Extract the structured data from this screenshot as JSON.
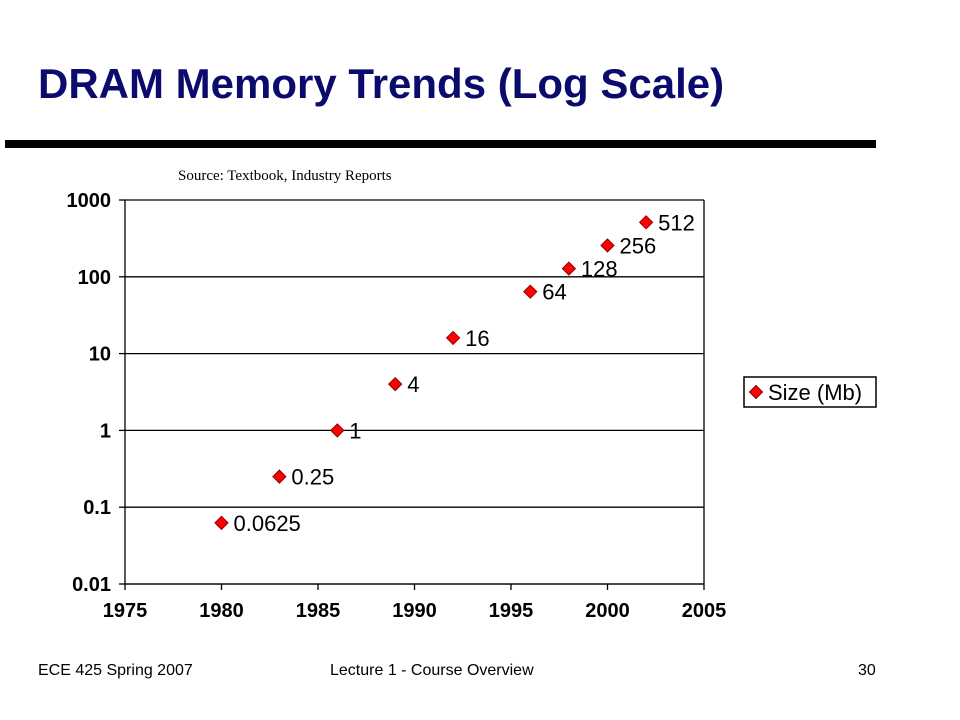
{
  "slide": {
    "title": "DRAM Memory Trends (Log Scale)",
    "source_note": "Source: Textbook, Industry Reports"
  },
  "footer": {
    "left": "ECE 425 Spring 2007",
    "center": "Lecture 1 - Course Overview",
    "page_number": "30"
  },
  "colors": {
    "title": "#0b0b6e",
    "marker": "#ff0000",
    "marker_outline": "#8b0000"
  },
  "chart_data": {
    "type": "scatter",
    "title": "",
    "xlabel": "",
    "ylabel": "",
    "x_scale": "linear",
    "y_scale": "log",
    "xlim": [
      1975,
      2005
    ],
    "ylim": [
      0.01,
      1000
    ],
    "x_ticks": [
      "1975",
      "1980",
      "1985",
      "1990",
      "1995",
      "2000",
      "2005"
    ],
    "y_ticks": [
      "0.01",
      "0.1",
      "1",
      "10",
      "100",
      "1000"
    ],
    "grid": "horizontal",
    "legend_position": "right",
    "series": [
      {
        "name": "Size (Mb)",
        "marker": "diamond",
        "points": [
          {
            "x": 1980,
            "y": 0.0625,
            "label": "0.0625"
          },
          {
            "x": 1983,
            "y": 0.25,
            "label": "0.25"
          },
          {
            "x": 1986,
            "y": 1,
            "label": "1"
          },
          {
            "x": 1989,
            "y": 4,
            "label": "4"
          },
          {
            "x": 1992,
            "y": 16,
            "label": "16"
          },
          {
            "x": 1996,
            "y": 64,
            "label": "64"
          },
          {
            "x": 1998,
            "y": 128,
            "label": "128"
          },
          {
            "x": 2000,
            "y": 256,
            "label": "256"
          },
          {
            "x": 2002,
            "y": 512,
            "label": "512"
          }
        ]
      }
    ]
  }
}
